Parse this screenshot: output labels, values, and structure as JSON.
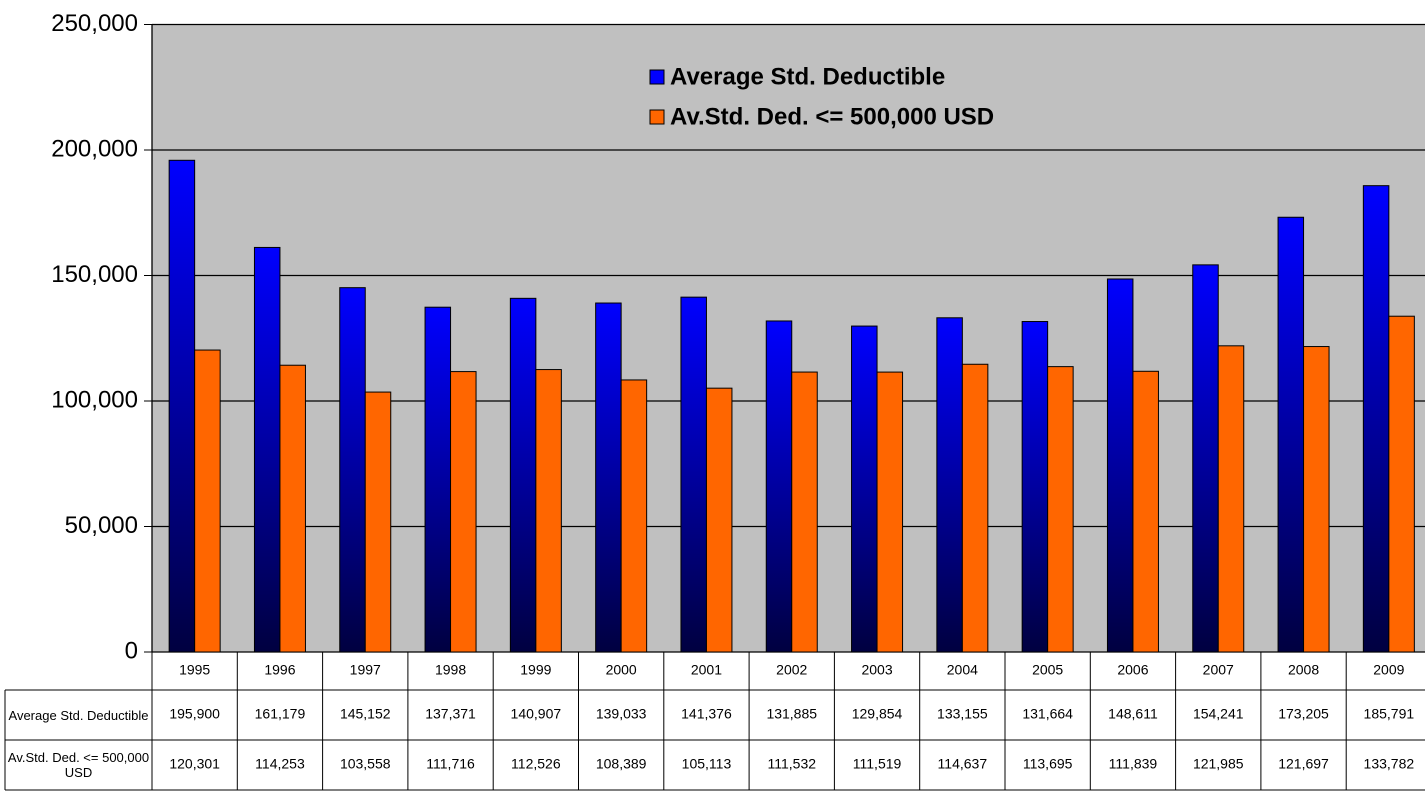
{
  "chart_data": {
    "type": "bar",
    "categories": [
      "1995",
      "1996",
      "1997",
      "1998",
      "1999",
      "2000",
      "2001",
      "2002",
      "2003",
      "2004",
      "2005",
      "2006",
      "2007",
      "2008",
      "2009"
    ],
    "series": [
      {
        "name": "Average Std. Deductible",
        "color": "#0000ff",
        "values": [
          195900,
          161179,
          145152,
          137371,
          140907,
          139033,
          141376,
          131885,
          129854,
          133155,
          131664,
          148611,
          154241,
          173205,
          185791
        ],
        "value_labels": [
          "195,900",
          "161,179",
          "145,152",
          "137,371",
          "140,907",
          "139,033",
          "141,376",
          "131,885",
          "129,854",
          "133,155",
          "131,664",
          "148,611",
          "154,241",
          "173,205",
          "185,791"
        ]
      },
      {
        "name": "Av.Std. Ded. <= 500,000 USD",
        "color": "#ff6600",
        "values": [
          120301,
          114253,
          103558,
          111716,
          112526,
          108389,
          105113,
          111532,
          111519,
          114637,
          113695,
          111839,
          121985,
          121697,
          133782
        ],
        "value_labels": [
          "120,301",
          "114,253",
          "103,558",
          "111,716",
          "112,526",
          "108,389",
          "105,113",
          "111,532",
          "111,519",
          "114,637",
          "113,695",
          "111,839",
          "121,985",
          "121,697",
          "133,782"
        ]
      }
    ],
    "ylim": [
      0,
      250000
    ],
    "yticks": [
      0,
      {
        "value": 50000,
        "label": "50,000"
      },
      {
        "value": 100000,
        "label": "100,000"
      },
      {
        "value": 150000,
        "label": "150,000"
      },
      {
        "value": 200000,
        "label": "200,000"
      },
      {
        "value": 250000,
        "label": "250,000"
      }
    ],
    "grid": true,
    "legend": "top",
    "data_table": true
  }
}
